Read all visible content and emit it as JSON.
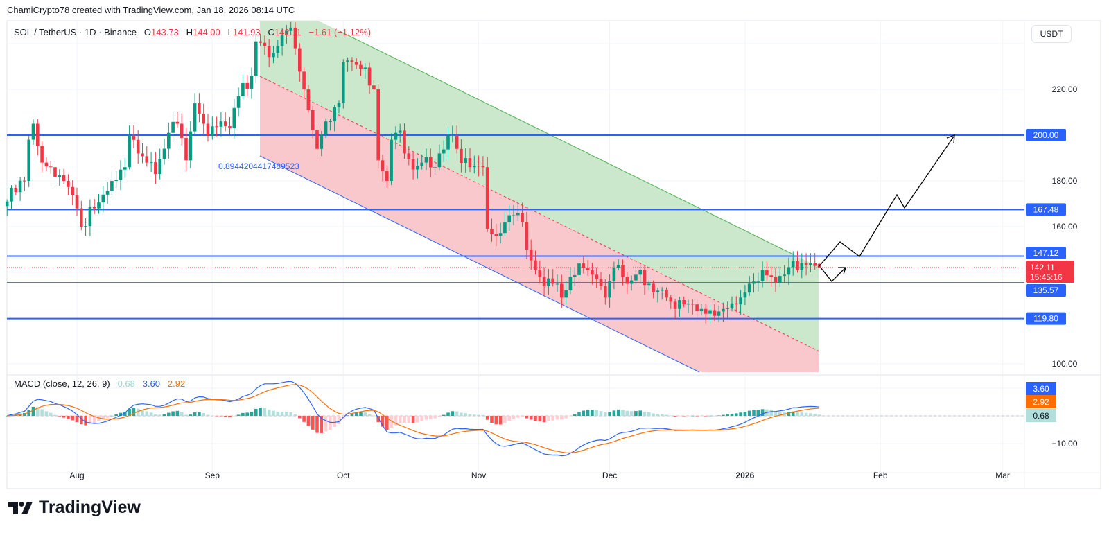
{
  "credit": "ChamiCrypto78 created with TradingView.com, Jan 18, 2026 08:14 UTC",
  "symbol": "SOL / TetherUS · 1D · Binance",
  "ohlc": {
    "o_label": "O",
    "o": "143.73",
    "h_label": "H",
    "h": "144.00",
    "l_label": "L",
    "l": "141.93",
    "c_label": "C",
    "c": "142.11",
    "change": "−1.61 (−1.12%)"
  },
  "currency_button": "USDT",
  "fib_label": "0.8944204417489523",
  "colors": {
    "up": "#089981",
    "down": "#f23645",
    "level": "#2962ff",
    "macd": "#2962ff",
    "signal": "#ff6d00",
    "hist_up": "#26a69a",
    "hist_up_light": "#b2dfdb",
    "hist_down": "#ff5252",
    "hist_down_light": "#ffcdd2",
    "channel_green": "#c8e6c9",
    "channel_red": "#f9c5c9"
  },
  "chart_data": {
    "type": "candlestick",
    "title": "SOL / TetherUS · 1D · Binance",
    "start_date": "2025-07-16",
    "ylim": [
      96,
      252
    ],
    "price_ticks": [
      "100.00",
      "160.00",
      "180.00",
      "220.00"
    ],
    "price_tick_values": [
      100,
      160,
      180,
      220
    ],
    "time_ticks": [
      {
        "label": "Aug",
        "day": 16
      },
      {
        "label": "Sep",
        "day": 47
      },
      {
        "label": "Oct",
        "day": 77
      },
      {
        "label": "Nov",
        "day": 108
      },
      {
        "label": "Dec",
        "day": 138
      },
      {
        "label": "2026",
        "day": 169
      },
      {
        "label": "Feb",
        "day": 200
      },
      {
        "label": "Mar",
        "day": 228
      }
    ],
    "close_waypoints": [
      [
        0,
        171
      ],
      [
        1,
        177
      ],
      [
        4,
        180
      ],
      [
        5,
        198
      ],
      [
        6,
        205
      ],
      [
        8,
        188
      ],
      [
        10,
        186
      ],
      [
        13,
        180
      ],
      [
        16,
        168
      ],
      [
        17,
        160
      ],
      [
        20,
        168
      ],
      [
        22,
        174
      ],
      [
        24,
        180
      ],
      [
        27,
        186
      ],
      [
        28,
        200
      ],
      [
        30,
        192
      ],
      [
        32,
        188
      ],
      [
        34,
        183
      ],
      [
        37,
        201
      ],
      [
        39,
        205
      ],
      [
        41,
        189
      ],
      [
        43,
        214
      ],
      [
        45,
        205
      ],
      [
        46,
        200
      ],
      [
        49,
        206
      ],
      [
        51,
        203
      ],
      [
        53,
        217
      ],
      [
        56,
        226
      ],
      [
        57,
        241
      ],
      [
        59,
        239
      ],
      [
        61,
        236
      ],
      [
        63,
        244
      ],
      [
        65,
        247
      ],
      [
        66,
        238
      ],
      [
        68,
        220
      ],
      [
        69,
        211
      ],
      [
        71,
        194
      ],
      [
        73,
        206
      ],
      [
        76,
        214
      ],
      [
        77,
        232
      ],
      [
        79,
        232
      ],
      [
        81,
        229
      ],
      [
        84,
        220
      ],
      [
        85,
        189
      ],
      [
        87,
        180
      ],
      [
        88,
        198
      ],
      [
        90,
        202
      ],
      [
        91,
        192
      ],
      [
        93,
        185
      ],
      [
        95,
        188
      ],
      [
        98,
        186
      ],
      [
        99,
        192
      ],
      [
        102,
        200
      ],
      [
        103,
        194
      ],
      [
        106,
        186
      ],
      [
        109,
        186
      ],
      [
        110,
        159
      ],
      [
        112,
        156
      ],
      [
        114,
        162
      ],
      [
        116,
        165
      ],
      [
        118,
        162
      ],
      [
        119,
        150
      ],
      [
        121,
        141
      ],
      [
        122,
        138
      ],
      [
        125,
        135
      ],
      [
        127,
        129
      ],
      [
        129,
        138
      ],
      [
        132,
        142
      ],
      [
        134,
        139
      ],
      [
        137,
        129
      ],
      [
        139,
        142
      ],
      [
        141,
        138
      ],
      [
        142,
        135
      ],
      [
        144,
        139
      ],
      [
        147,
        135
      ],
      [
        149,
        132
      ],
      [
        151,
        129
      ],
      [
        153,
        124
      ],
      [
        155,
        126
      ],
      [
        157,
        126
      ],
      [
        159,
        124
      ],
      [
        162,
        121
      ],
      [
        164,
        124
      ],
      [
        167,
        126
      ],
      [
        168,
        129
      ],
      [
        171,
        136
      ],
      [
        173,
        141
      ],
      [
        175,
        138
      ],
      [
        178,
        139
      ],
      [
        180,
        145
      ],
      [
        182,
        144
      ],
      [
        184,
        144
      ],
      [
        186,
        142.11
      ]
    ],
    "last_candle": {
      "open": 143.73,
      "high": 144.0,
      "low": 141.93,
      "close": 142.11
    },
    "levels": [
      {
        "value": 200.0,
        "label": "200.00"
      },
      {
        "value": 167.48,
        "label": "167.48"
      },
      {
        "value": 147.12,
        "label": "147.12"
      },
      {
        "value": 135.57,
        "label": "135.57"
      },
      {
        "value": 119.8,
        "label": "119.80"
      }
    ],
    "current_price": {
      "label": "142.11",
      "countdown": "15:45:16",
      "value": 142.11
    },
    "macd": {
      "title": "MACD (close, 12, 26, 9)",
      "hist": "0.68",
      "macd": "3.60",
      "signal": "2.92",
      "hist_value": 0.68,
      "macd_value": 3.6,
      "signal_value": 2.92,
      "ticks": [
        {
          "label": "−10.00",
          "value": -10
        }
      ]
    }
  }
}
